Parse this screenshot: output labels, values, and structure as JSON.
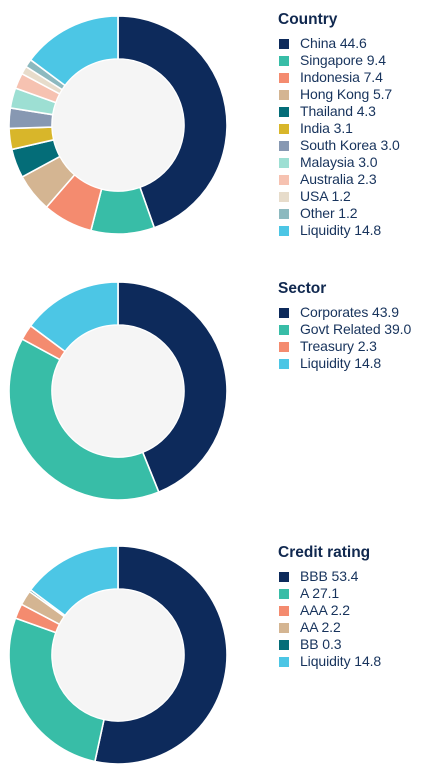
{
  "chart_data": [
    {
      "type": "pie",
      "title": "Country",
      "inner_color": "#f5f5f5",
      "slices": [
        {
          "label": "China 44.6",
          "name": "China",
          "value": 44.6,
          "color": "#0d2a5b"
        },
        {
          "label": "Singapore 9.4",
          "name": "Singapore",
          "value": 9.4,
          "color": "#38bda7"
        },
        {
          "label": "Indonesia 7.4",
          "name": "Indonesia",
          "value": 7.4,
          "color": "#f48b6f"
        },
        {
          "label": "Hong Kong 5.7",
          "name": "Hong Kong",
          "value": 5.7,
          "color": "#d4b592"
        },
        {
          "label": "Thailand 4.3",
          "name": "Thailand",
          "value": 4.3,
          "color": "#046d78"
        },
        {
          "label": "India 3.1",
          "name": "India",
          "value": 3.1,
          "color": "#d8b62a"
        },
        {
          "label": "South Korea 3.0",
          "name": "South Korea",
          "value": 3.0,
          "color": "#8798b2"
        },
        {
          "label": "Malaysia 3.0",
          "name": "Malaysia",
          "value": 3.0,
          "color": "#9ddfd3"
        },
        {
          "label": "Australia 2.3",
          "name": "Australia",
          "value": 2.3,
          "color": "#f6c2b1"
        },
        {
          "label": "USA 1.2",
          "name": "USA",
          "value": 1.2,
          "color": "#e7dccb"
        },
        {
          "label": "Other 1.2",
          "name": "Other",
          "value": 1.2,
          "color": "#8cb9bf"
        },
        {
          "label": "Liquidity 14.8",
          "name": "Liquidity",
          "value": 14.8,
          "color": "#4cc6e5"
        }
      ]
    },
    {
      "type": "pie",
      "title": "Sector",
      "inner_color": "#f5f5f5",
      "slices": [
        {
          "label": "Corporates 43.9",
          "name": "Corporates",
          "value": 43.9,
          "color": "#0d2a5b"
        },
        {
          "label": "Govt Related 39.0",
          "name": "Govt Related",
          "value": 39.0,
          "color": "#38bda7"
        },
        {
          "label": "Treasury 2.3",
          "name": "Treasury",
          "value": 2.3,
          "color": "#f48b6f"
        },
        {
          "label": "Liquidity 14.8",
          "name": "Liquidity",
          "value": 14.8,
          "color": "#4cc6e5"
        }
      ]
    },
    {
      "type": "pie",
      "title": "Credit rating",
      "inner_color": "#f5f5f5",
      "slices": [
        {
          "label": "BBB 53.4",
          "name": "BBB",
          "value": 53.4,
          "color": "#0d2a5b"
        },
        {
          "label": "A 27.1",
          "name": "A",
          "value": 27.1,
          "color": "#38bda7"
        },
        {
          "label": "AAA 2.2",
          "name": "AAA",
          "value": 2.2,
          "color": "#f48b6f"
        },
        {
          "label": "AA 2.2",
          "name": "AA",
          "value": 2.2,
          "color": "#d4b592"
        },
        {
          "label": "BB 0.3",
          "name": "BB",
          "value": 0.3,
          "color": "#046d78"
        },
        {
          "label": "Liquidity 14.8",
          "name": "Liquidity",
          "value": 14.8,
          "color": "#4cc6e5"
        }
      ]
    }
  ]
}
